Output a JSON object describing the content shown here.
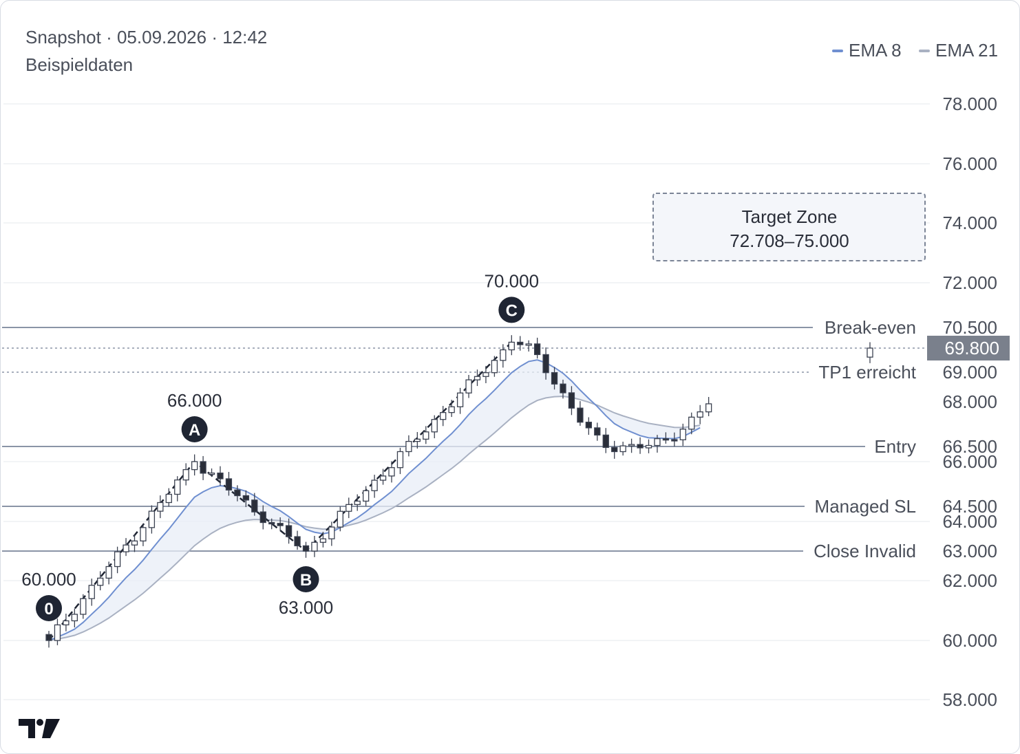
{
  "header": {
    "title": "Snapshot · 05.09.2026 · 12:42",
    "subtitle": "Beispieldaten"
  },
  "legend": [
    {
      "name": "EMA 8",
      "color": "#6f8fd0"
    },
    {
      "name": "EMA 21",
      "color": "#a9b1c2"
    }
  ],
  "chart_data": {
    "type": "candlestick",
    "y_axis": {
      "position": "right",
      "ticks": [
        {
          "label": "78.000",
          "value": 78.0
        },
        {
          "label": "76.000",
          "value": 76.0
        },
        {
          "label": "74.000",
          "value": 74.0
        },
        {
          "label": "72.000",
          "value": 72.0
        },
        {
          "label": "70.500",
          "value": 70.5
        },
        {
          "label": "69.000",
          "value": 69.0
        },
        {
          "label": "68.000",
          "value": 68.0
        },
        {
          "label": "66.500",
          "value": 66.5
        },
        {
          "label": "66.000",
          "value": 66.0
        },
        {
          "label": "64.500",
          "value": 64.5
        },
        {
          "label": "64.000",
          "value": 64.0
        },
        {
          "label": "63.000",
          "value": 63.0
        },
        {
          "label": "62.000",
          "value": 62.0
        },
        {
          "label": "60.000",
          "value": 60.0
        },
        {
          "label": "58.000",
          "value": 58.0
        }
      ],
      "current_price": {
        "label": "69.800",
        "value": 69.8,
        "bg": "#7a808c"
      },
      "grid": true
    },
    "levels": [
      {
        "name": "Break-even",
        "value": 70.5,
        "style": "solid"
      },
      {
        "name": "TP1 erreicht",
        "value": 69.0,
        "style": "dotted"
      },
      {
        "name": "Entry",
        "value": 66.5,
        "style": "solid"
      },
      {
        "name": "Managed SL",
        "value": 64.5,
        "style": "solid"
      },
      {
        "name": "Close Invalid",
        "value": 63.0,
        "style": "solid"
      }
    ],
    "current_price_line": {
      "value": 69.8,
      "style": "dotted"
    },
    "target_zone": {
      "title": "Target Zone",
      "range": "72.708–75.000",
      "low": 72.708,
      "high": 75.0
    },
    "pivots": [
      {
        "name": "0",
        "bar": 0,
        "price": 60.0,
        "price_label": "60.000",
        "position": "above"
      },
      {
        "name": "A",
        "bar": 17,
        "price": 66.0,
        "price_label": "66.000",
        "position": "above"
      },
      {
        "name": "B",
        "bar": 30,
        "price": 63.0,
        "price_label": "63.000",
        "position": "below"
      },
      {
        "name": "C",
        "bar": 54,
        "price": 70.0,
        "price_label": "70.000",
        "position": "above"
      }
    ],
    "segments_per_leg": [
      17,
      13,
      24
    ],
    "bars": 79,
    "ohlc_series": "sample data (Beispieldaten): zig-zag 60.000 → 66.000 → 63.000 → 70.000, pullback to ~66.5, recovery to 69.800"
  }
}
